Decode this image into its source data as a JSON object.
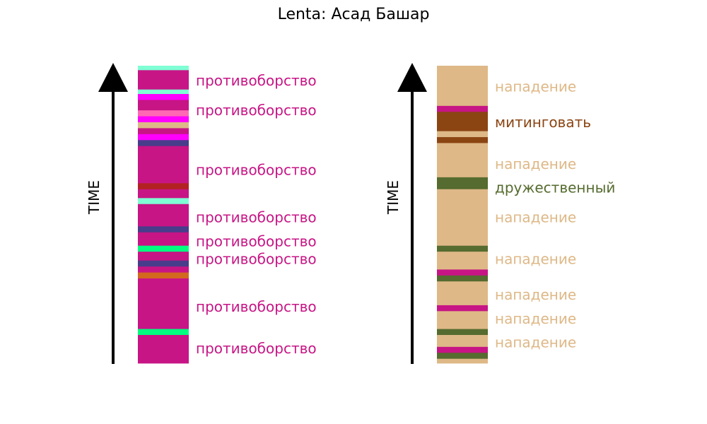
{
  "title": "Lenta: Асад Башар",
  "chart_data": [
    {
      "type": "bar",
      "orientation": "stacked-timeline",
      "ylabel": "TIME",
      "ylim": [
        0,
        100
      ],
      "segments": [
        {
          "start": 0.0,
          "end": 1.5,
          "color": "#7fffd4"
        },
        {
          "start": 1.5,
          "end": 8.0,
          "color": "#c71585"
        },
        {
          "start": 8.0,
          "end": 9.5,
          "color": "#7fffd4"
        },
        {
          "start": 9.5,
          "end": 11.5,
          "color": "#ff00ff"
        },
        {
          "start": 11.5,
          "end": 15.0,
          "color": "#c71585"
        },
        {
          "start": 15.0,
          "end": 17.0,
          "color": "#ff69b4"
        },
        {
          "start": 17.0,
          "end": 19.0,
          "color": "#ff00ff"
        },
        {
          "start": 19.0,
          "end": 21.0,
          "color": "#deb887"
        },
        {
          "start": 21.0,
          "end": 23.0,
          "color": "#c71585"
        },
        {
          "start": 23.0,
          "end": 25.0,
          "color": "#ff00ff"
        },
        {
          "start": 25.0,
          "end": 27.0,
          "color": "#483d8b"
        },
        {
          "start": 27.0,
          "end": 39.5,
          "color": "#c71585"
        },
        {
          "start": 39.5,
          "end": 41.5,
          "color": "#b22222"
        },
        {
          "start": 41.5,
          "end": 44.5,
          "color": "#c71585"
        },
        {
          "start": 44.5,
          "end": 46.5,
          "color": "#7fffd4"
        },
        {
          "start": 46.5,
          "end": 54.0,
          "color": "#c71585"
        },
        {
          "start": 54.0,
          "end": 56.0,
          "color": "#483d8b"
        },
        {
          "start": 56.0,
          "end": 60.5,
          "color": "#c71585"
        },
        {
          "start": 60.5,
          "end": 62.5,
          "color": "#00ff7f"
        },
        {
          "start": 62.5,
          "end": 65.5,
          "color": "#c71585"
        },
        {
          "start": 65.5,
          "end": 67.5,
          "color": "#483d8b"
        },
        {
          "start": 67.5,
          "end": 69.5,
          "color": "#c71585"
        },
        {
          "start": 69.5,
          "end": 71.5,
          "color": "#d2691e"
        },
        {
          "start": 71.5,
          "end": 88.5,
          "color": "#c71585"
        },
        {
          "start": 88.5,
          "end": 90.5,
          "color": "#00ff7f"
        },
        {
          "start": 90.5,
          "end": 100.0,
          "color": "#c71585"
        }
      ],
      "labels": [
        {
          "text": "противоборство",
          "value": 5.0,
          "color": "#c71585"
        },
        {
          "text": "противоборство",
          "value": 15.0,
          "color": "#c71585"
        },
        {
          "text": "противоборство",
          "value": 35.0,
          "color": "#c71585"
        },
        {
          "text": "противоборство",
          "value": 51.0,
          "color": "#c71585"
        },
        {
          "text": "противоборство",
          "value": 59.0,
          "color": "#c71585"
        },
        {
          "text": "противоборство",
          "value": 65.0,
          "color": "#c71585"
        },
        {
          "text": "противоборство",
          "value": 81.0,
          "color": "#c71585"
        },
        {
          "text": "противоборство",
          "value": 95.0,
          "color": "#c71585"
        }
      ]
    },
    {
      "type": "bar",
      "orientation": "stacked-timeline",
      "ylabel": "TIME",
      "ylim": [
        0,
        100
      ],
      "segments": [
        {
          "start": 0.0,
          "end": 13.5,
          "color": "#deb887"
        },
        {
          "start": 13.5,
          "end": 15.5,
          "color": "#c71585"
        },
        {
          "start": 15.5,
          "end": 22.0,
          "color": "#8b4513"
        },
        {
          "start": 22.0,
          "end": 24.0,
          "color": "#deb887"
        },
        {
          "start": 24.0,
          "end": 26.0,
          "color": "#8b4513"
        },
        {
          "start": 26.0,
          "end": 37.5,
          "color": "#deb887"
        },
        {
          "start": 37.5,
          "end": 41.5,
          "color": "#556b2f"
        },
        {
          "start": 41.5,
          "end": 60.5,
          "color": "#deb887"
        },
        {
          "start": 60.5,
          "end": 62.5,
          "color": "#556b2f"
        },
        {
          "start": 62.5,
          "end": 68.5,
          "color": "#deb887"
        },
        {
          "start": 68.5,
          "end": 70.5,
          "color": "#c71585"
        },
        {
          "start": 70.5,
          "end": 72.5,
          "color": "#556b2f"
        },
        {
          "start": 72.5,
          "end": 80.5,
          "color": "#deb887"
        },
        {
          "start": 80.5,
          "end": 82.5,
          "color": "#c71585"
        },
        {
          "start": 82.5,
          "end": 88.5,
          "color": "#deb887"
        },
        {
          "start": 88.5,
          "end": 90.5,
          "color": "#556b2f"
        },
        {
          "start": 90.5,
          "end": 94.5,
          "color": "#deb887"
        },
        {
          "start": 94.5,
          "end": 96.5,
          "color": "#c71585"
        },
        {
          "start": 96.5,
          "end": 98.5,
          "color": "#556b2f"
        },
        {
          "start": 98.5,
          "end": 100.0,
          "color": "#deb887"
        }
      ],
      "labels": [
        {
          "text": "нападение",
          "value": 7.0,
          "color": "#deb887"
        },
        {
          "text": "митинговать",
          "value": 19.0,
          "color": "#8b4513"
        },
        {
          "text": "нападение",
          "value": 33.0,
          "color": "#deb887"
        },
        {
          "text": "дружественный",
          "value": 41.0,
          "color": "#556b2f"
        },
        {
          "text": "нападение",
          "value": 51.0,
          "color": "#deb887"
        },
        {
          "text": "нападение",
          "value": 65.0,
          "color": "#deb887"
        },
        {
          "text": "нападение",
          "value": 77.0,
          "color": "#deb887"
        },
        {
          "text": "нападение",
          "value": 85.0,
          "color": "#deb887"
        },
        {
          "text": "нападение",
          "value": 93.0,
          "color": "#deb887"
        }
      ]
    }
  ]
}
